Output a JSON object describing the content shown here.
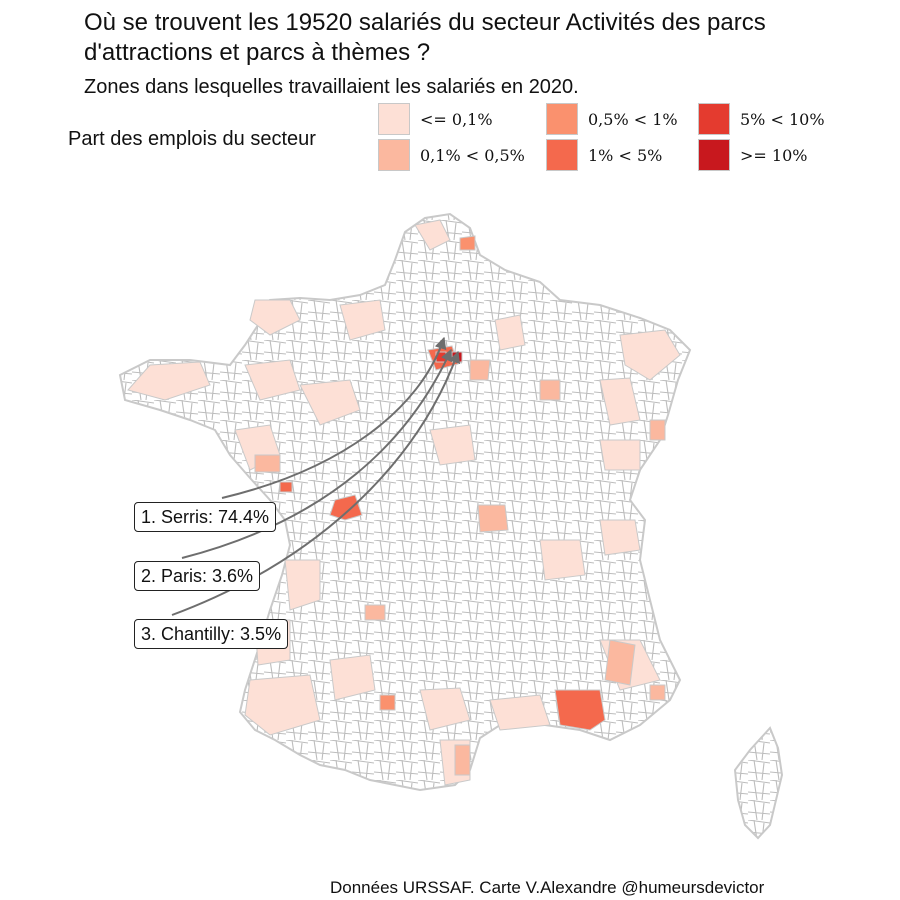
{
  "title": "Où se trouvent les 19520 salariés du secteur Activités des parcs d'attractions et parcs à thèmes ?",
  "subtitle": "Zones dans lesquelles travaillaient les salariés en 2020.",
  "legend": {
    "title": "Part des emplois du secteur",
    "items": [
      {
        "label": "<= 0,1%",
        "color": "#fde0d6"
      },
      {
        "label": "0,1% < 0,5%",
        "color": "#fbb89f"
      },
      {
        "label": "0,5% < 1%",
        "color": "#fa916e"
      },
      {
        "label": "1% < 5%",
        "color": "#f4694d"
      },
      {
        "label": "5% < 10%",
        "color": "#e43b2f"
      },
      {
        "label": ">= 10%",
        "color": "#c8181e"
      }
    ]
  },
  "callouts": [
    {
      "label": "1. Serris: 74.4%"
    },
    {
      "label": "2. Paris: 3.6%"
    },
    {
      "label": "3. Chantilly: 3.5%"
    }
  ],
  "caption": "Données URSSAF. Carte V.Alexandre @humeursdevictor",
  "colors": {
    "border": "#bdbdbd",
    "empty": "#ffffff",
    "arrow": "#6e6e6e"
  }
}
